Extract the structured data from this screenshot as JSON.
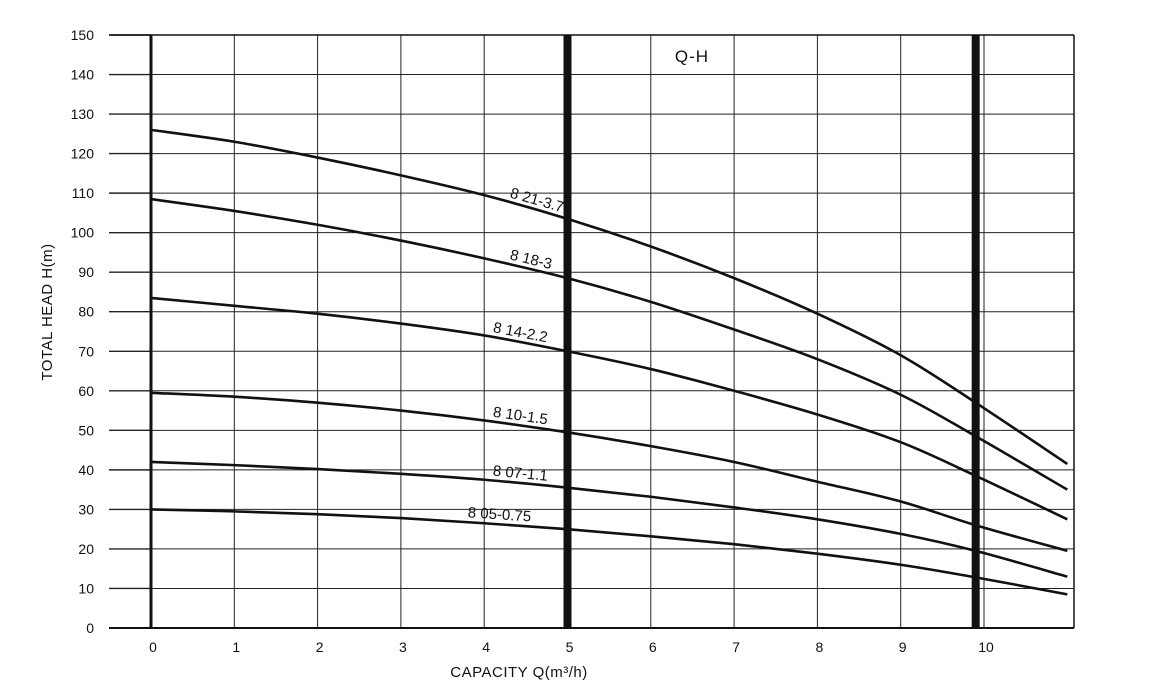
{
  "chart_data": {
    "type": "line",
    "title": "Q-H",
    "xlabel": "CAPACITY Q(m³/h)",
    "ylabel": "TOTAL HEAD H(m)",
    "xlim": [
      0,
      11
    ],
    "ylim": [
      0,
      150
    ],
    "grid": true,
    "x_ticks": [
      "0",
      "1",
      "2",
      "3",
      "4",
      "5",
      "6",
      "7",
      "8",
      "9",
      "10"
    ],
    "y_ticks": [
      "0",
      "10",
      "20",
      "30",
      "40",
      "50",
      "60",
      "70",
      "80",
      "90",
      "100",
      "110",
      "120",
      "130",
      "140",
      "150"
    ],
    "range_lines_x": [
      5,
      9.9
    ],
    "line_color": "#111111",
    "series": [
      {
        "name": "8 21-3.7",
        "x": [
          0,
          1,
          2,
          3,
          4,
          5,
          6,
          7,
          8,
          9,
          9.9,
          11
        ],
        "y": [
          126,
          123,
          119,
          114.5,
          109.5,
          103.5,
          96.5,
          88.5,
          79.5,
          69,
          57,
          41.5
        ],
        "label_x": 4.3
      },
      {
        "name": "8 18-3",
        "x": [
          0,
          1,
          2,
          3,
          4,
          5,
          6,
          7,
          8,
          9,
          9.9,
          11
        ],
        "y": [
          108.5,
          105.5,
          102,
          98,
          93.5,
          88.5,
          82.5,
          75.5,
          68,
          59,
          48.5,
          35
        ],
        "label_x": 4.3
      },
      {
        "name": "8 14-2.2",
        "x": [
          0,
          1,
          2,
          3,
          4,
          5,
          6,
          7,
          8,
          9,
          9.9,
          11
        ],
        "y": [
          83.5,
          81.5,
          79.5,
          77,
          74,
          70,
          65.5,
          60,
          54,
          47,
          38.5,
          27.5
        ],
        "label_x": 4.1
      },
      {
        "name": "8 10-1.5",
        "x": [
          0,
          1,
          2,
          3,
          4,
          5,
          6,
          7,
          8,
          9,
          9.9,
          11
        ],
        "y": [
          59.5,
          58.5,
          57,
          55,
          52.5,
          49.5,
          46,
          42,
          37,
          32,
          26,
          19.5
        ],
        "label_x": 4.1
      },
      {
        "name": "8 07-1.1",
        "x": [
          0,
          1,
          2,
          3,
          4,
          5,
          6,
          7,
          8,
          9,
          9.9,
          11
        ],
        "y": [
          42,
          41.2,
          40.2,
          39,
          37.5,
          35.5,
          33.2,
          30.5,
          27.5,
          23.8,
          19.5,
          13
        ],
        "label_x": 4.1
      },
      {
        "name": "8 05-0.75",
        "x": [
          0,
          1,
          2,
          3,
          4,
          5,
          6,
          7,
          8,
          9,
          9.9,
          11
        ],
        "y": [
          30,
          29.5,
          28.8,
          27.8,
          26.5,
          25,
          23.2,
          21.2,
          18.8,
          16,
          12.8,
          8.5
        ],
        "label_x": 3.8
      }
    ]
  }
}
